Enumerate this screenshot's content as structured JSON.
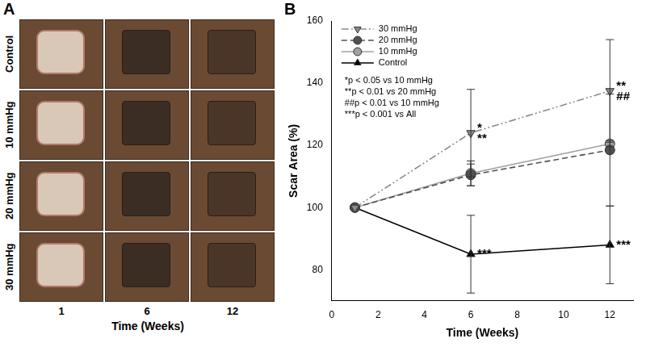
{
  "panel_a": {
    "letter": "A",
    "rows": [
      "Control",
      "10 mmHg",
      "20 mmHg",
      "30 mmHg"
    ],
    "columns": [
      "1",
      "6",
      "12"
    ],
    "x_label": "Time (Weeks)"
  },
  "chart_data": {
    "type": "line",
    "panel": "B",
    "x_label": "Time (Weeks)",
    "y_label": "Scar Area (%)",
    "x": [
      1,
      6,
      12
    ],
    "xlim": [
      0,
      13
    ],
    "xticks": [
      0,
      2,
      4,
      6,
      8,
      10,
      12
    ],
    "ylim": [
      70,
      160
    ],
    "yticks": [
      80,
      100,
      120,
      140,
      160
    ],
    "grid": false,
    "legend": "upper left",
    "annotations": [
      "*p < 0.05 vs 10 mmHg",
      "**p < 0.01 vs 20 mmHg",
      "##p < 0.01 vs 10 mmHg",
      "***p < 0.001 vs All"
    ],
    "series": [
      {
        "name": "30 mmHg",
        "color": "#8c8c8c",
        "marker": "triangle_down",
        "line_style": "dash_dot_dot",
        "values": [
          100,
          124,
          137.5
        ],
        "errors": [
          null,
          14,
          16.5
        ],
        "significance": [
          [],
          [
            "*",
            "**"
          ],
          [
            "**",
            "##"
          ]
        ]
      },
      {
        "name": "20 mmHg",
        "color": "#505050",
        "marker": "circle",
        "line_style": "dashed",
        "values": [
          100,
          110.5,
          118.5
        ],
        "errors": [
          null,
          3.5,
          18
        ],
        "significance": [
          [],
          [],
          []
        ]
      },
      {
        "name": "10 mmHg",
        "color": "#a0a0a0",
        "marker": "circle",
        "line_style": "solid",
        "values": [
          100,
          111,
          120.5
        ],
        "errors": [
          null,
          4,
          1
        ],
        "significance": [
          [],
          [],
          []
        ]
      },
      {
        "name": "Control",
        "color": "#000000",
        "marker": "triangle",
        "line_style": "solid",
        "values": [
          100,
          85,
          88
        ],
        "errors": [
          null,
          12.5,
          12.5
        ],
        "significance": [
          [],
          [
            "***"
          ],
          [
            "***"
          ]
        ]
      }
    ]
  }
}
